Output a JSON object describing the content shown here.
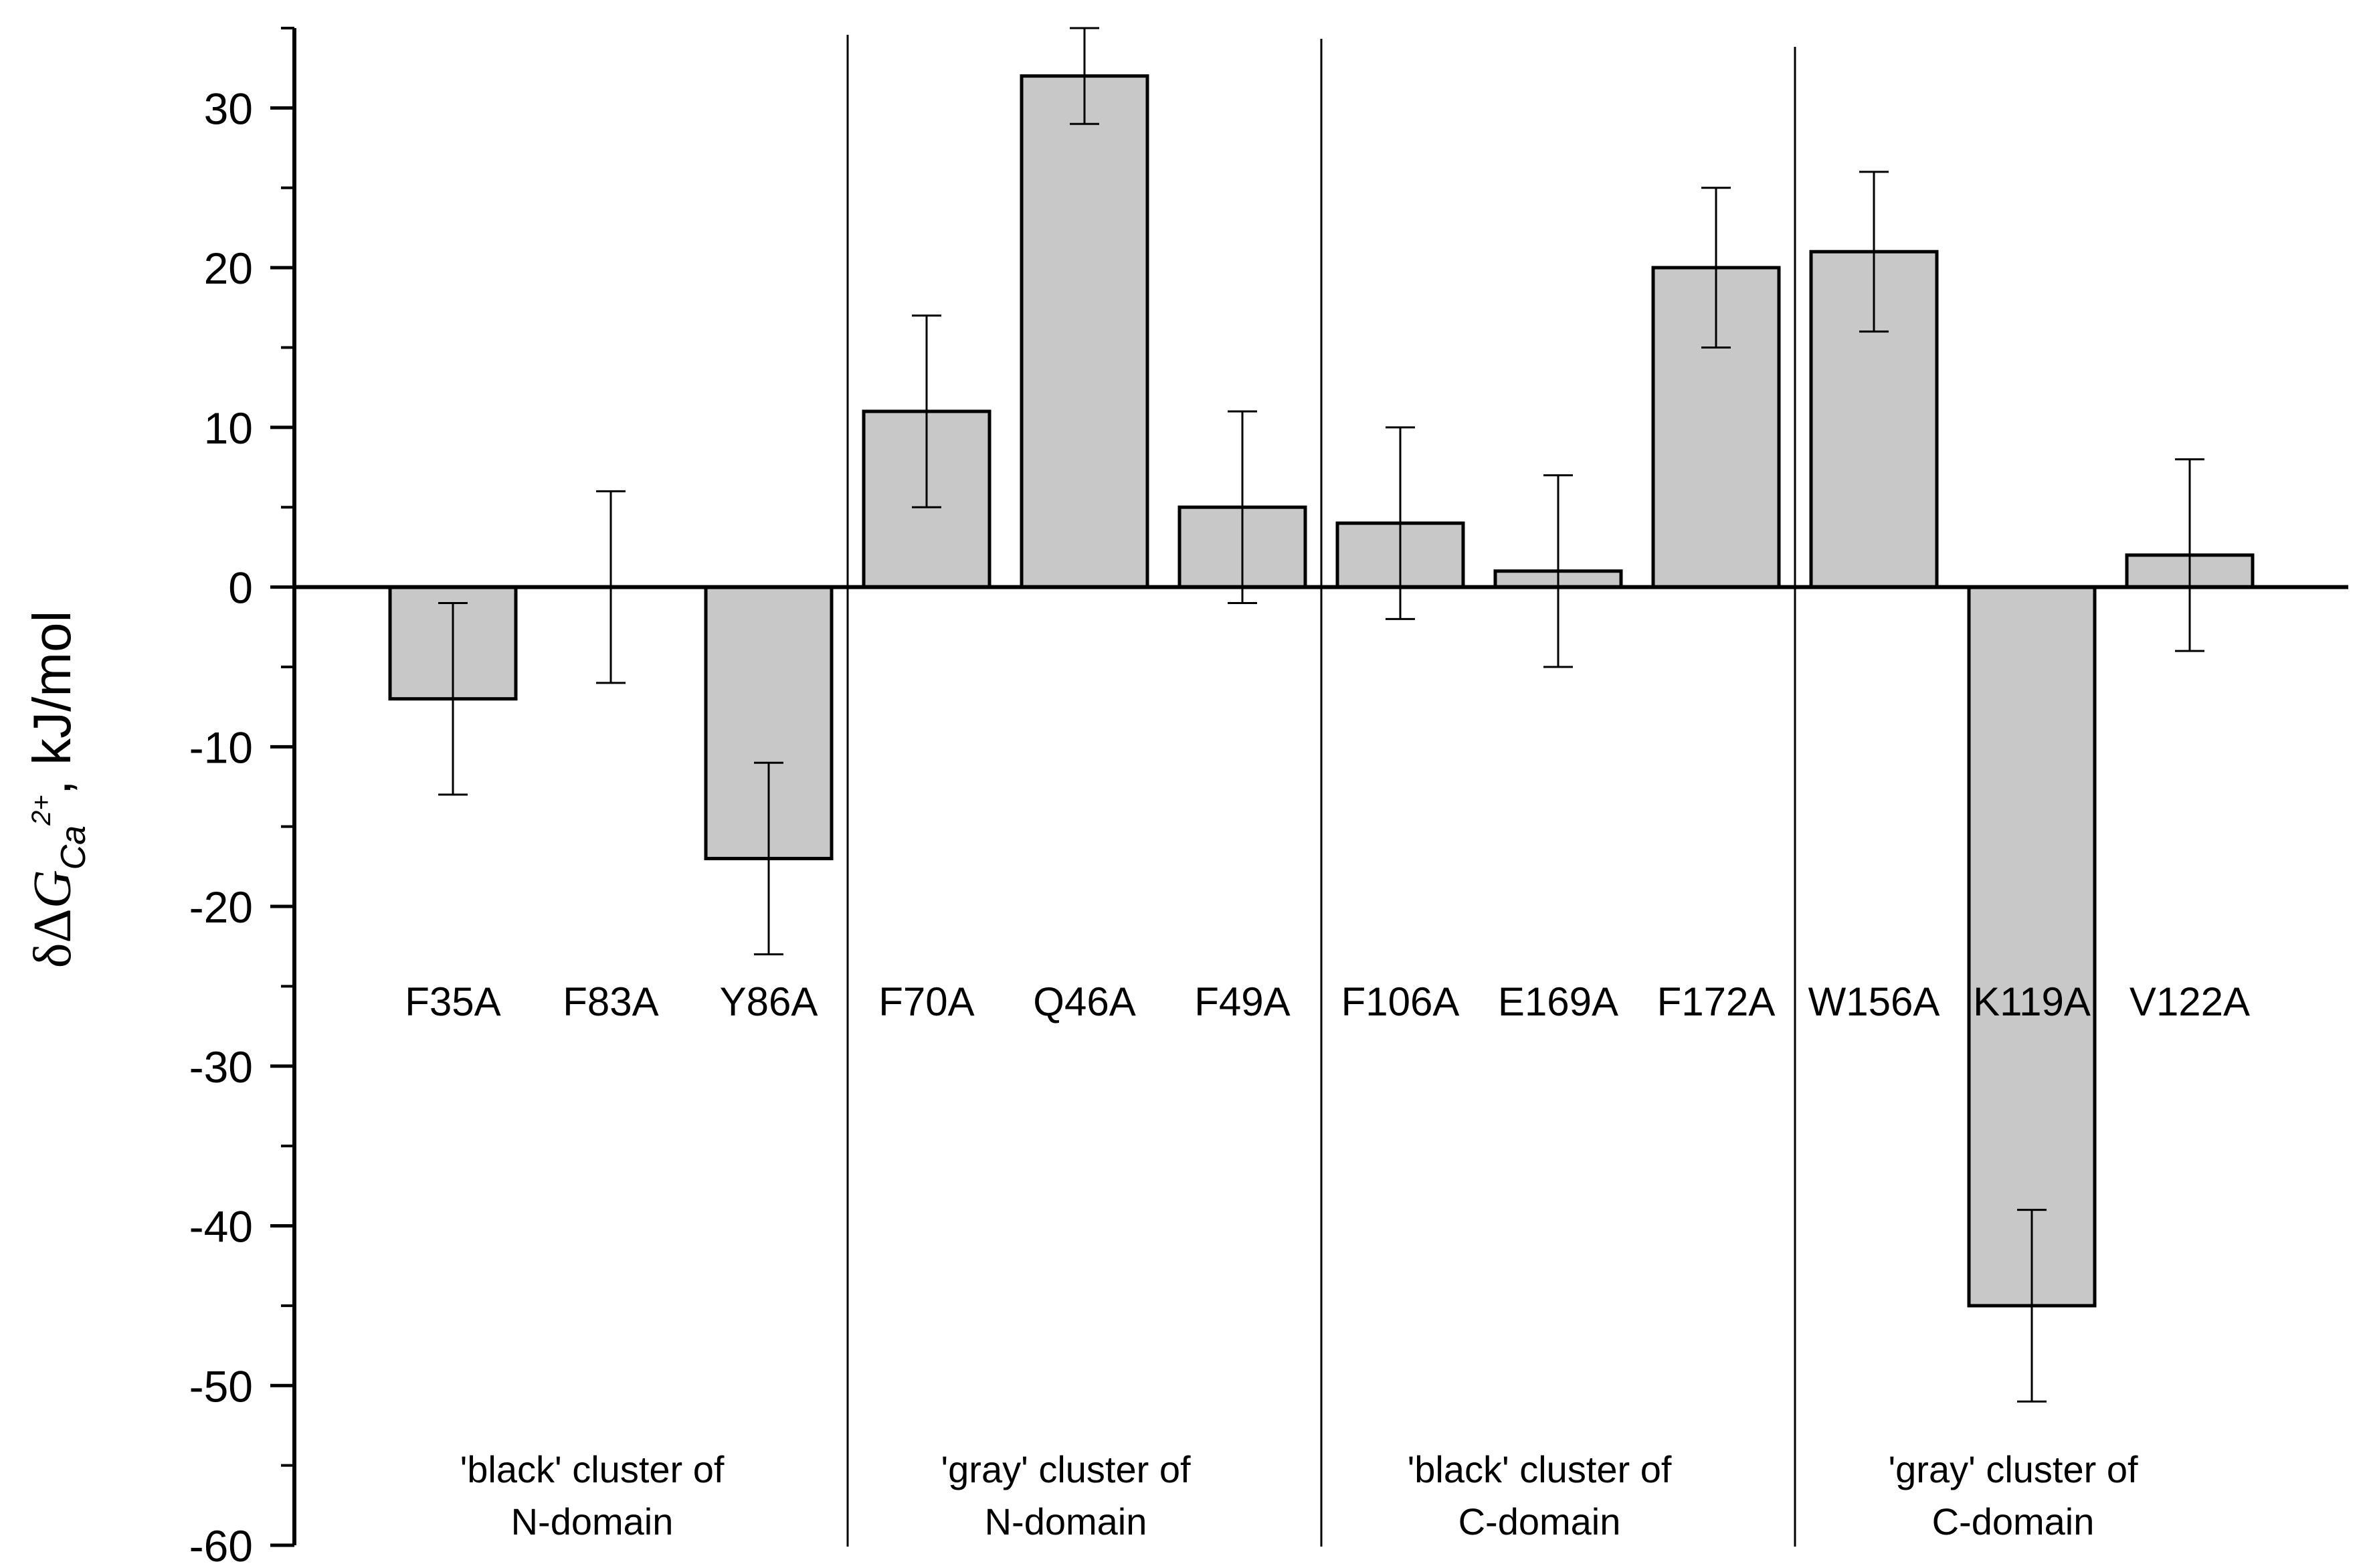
{
  "chart_data": {
    "type": "bar",
    "title": "",
    "xlabel": "",
    "ylabel": {
      "prefix": "δΔ",
      "symbol": "G",
      "subscript": "Ca",
      "sup": "2+",
      "suffix": ", kJ/mol"
    },
    "ylim": [
      -60,
      35
    ],
    "yticks": [
      -60,
      -50,
      -40,
      -30,
      -20,
      -10,
      0,
      10,
      20,
      30
    ],
    "grid": false,
    "categories": [
      "F35A",
      "F83A",
      "Y86A",
      "F70A",
      "Q46A",
      "F49A",
      "F106A",
      "E169A",
      "F172A",
      "W156A",
      "K119A",
      "V122A"
    ],
    "values": [
      -7,
      0,
      -17,
      11,
      32,
      5,
      4,
      1,
      20,
      21,
      -45,
      2
    ],
    "errors": [
      6,
      6,
      6,
      6,
      3,
      6,
      6,
      6,
      5,
      5,
      6,
      6
    ],
    "bar_color": "#c8c8c8",
    "groups": [
      {
        "line1": "'black' cluster of",
        "line2": "N-domain",
        "start": 0,
        "end": 2
      },
      {
        "line1": "'gray' cluster of",
        "line2": "N-domain",
        "start": 3,
        "end": 5
      },
      {
        "line1": "'black' cluster of",
        "line2": "C-domain",
        "start": 6,
        "end": 8
      },
      {
        "line1": "'gray' cluster of",
        "line2": "C-domain",
        "start": 9,
        "end": 11
      }
    ]
  }
}
